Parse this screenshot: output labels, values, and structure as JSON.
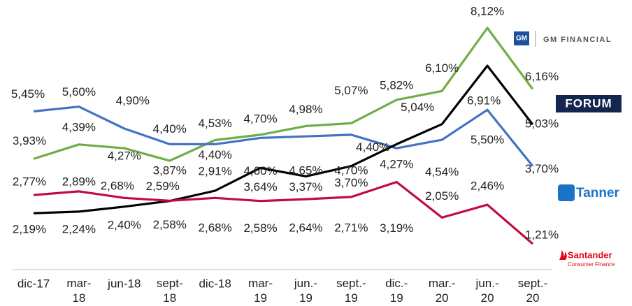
{
  "chart_data": {
    "type": "line",
    "categories": [
      "dic-17",
      "mar-\n18",
      "jun-18",
      "sept-\n18",
      "dic-18",
      "mar-\n19",
      "jun.-\n19",
      "sept.-\n19",
      "dic.-\n19",
      "mar.-\n20",
      "jun.-\n20",
      "sept.-\n20"
    ],
    "series": [
      {
        "name": "GM FINANCIAL",
        "color": "#70ad47",
        "values": [
          3.93,
          4.39,
          4.27,
          3.87,
          4.53,
          4.7,
          4.98,
          5.07,
          5.82,
          6.1,
          8.12,
          6.16
        ],
        "value_labels": [
          "3,93%",
          "4,39%",
          "4,27%",
          "3,87%",
          "4,53%",
          "4,70%",
          "4,98%",
          "5,07%",
          "5,82%",
          "6,10%",
          "8,12%",
          "6,16%"
        ]
      },
      {
        "name": "FORUM",
        "color": "#000000",
        "values": [
          2.19,
          2.24,
          2.4,
          2.58,
          2.91,
          3.64,
          3.37,
          3.7,
          4.4,
          5.04,
          6.91,
          5.03
        ],
        "value_labels": [
          "2,19%",
          "2,24%",
          "2,40%",
          "2,58%",
          "2,91%",
          "3,64%",
          "3,37%",
          "3,70%",
          "4,40%",
          "5,04%",
          "6,91%",
          "5,03%"
        ]
      },
      {
        "name": "Tanner",
        "color": "#4472c4",
        "values": [
          5.45,
          5.6,
          4.9,
          4.4,
          4.4,
          4.6,
          4.65,
          4.7,
          4.27,
          4.54,
          5.5,
          3.7
        ],
        "value_labels": [
          "5,45%",
          "5,60%",
          "4,90%",
          "4,40%",
          "4,40%",
          "4,60%",
          "4,65%",
          "4,70%",
          "4,27%",
          "4,54%",
          "5,50%",
          "3,70%"
        ]
      },
      {
        "name": "Santander",
        "color": "#c00d3e",
        "values": [
          2.77,
          2.89,
          2.68,
          2.59,
          2.68,
          2.58,
          2.64,
          2.71,
          3.19,
          2.05,
          2.46,
          1.21
        ],
        "value_labels": [
          "2,77%",
          "2,89%",
          "2,68%",
          "2,59%",
          "2,68%",
          "2,58%",
          "2,64%",
          "2,71%",
          "3,19%",
          "2,05%",
          "2,46%",
          "1,21%"
        ]
      }
    ],
    "legend_extras": {
      "gm_badge": "GM",
      "santander_tagline": "Consumer Finance"
    }
  }
}
